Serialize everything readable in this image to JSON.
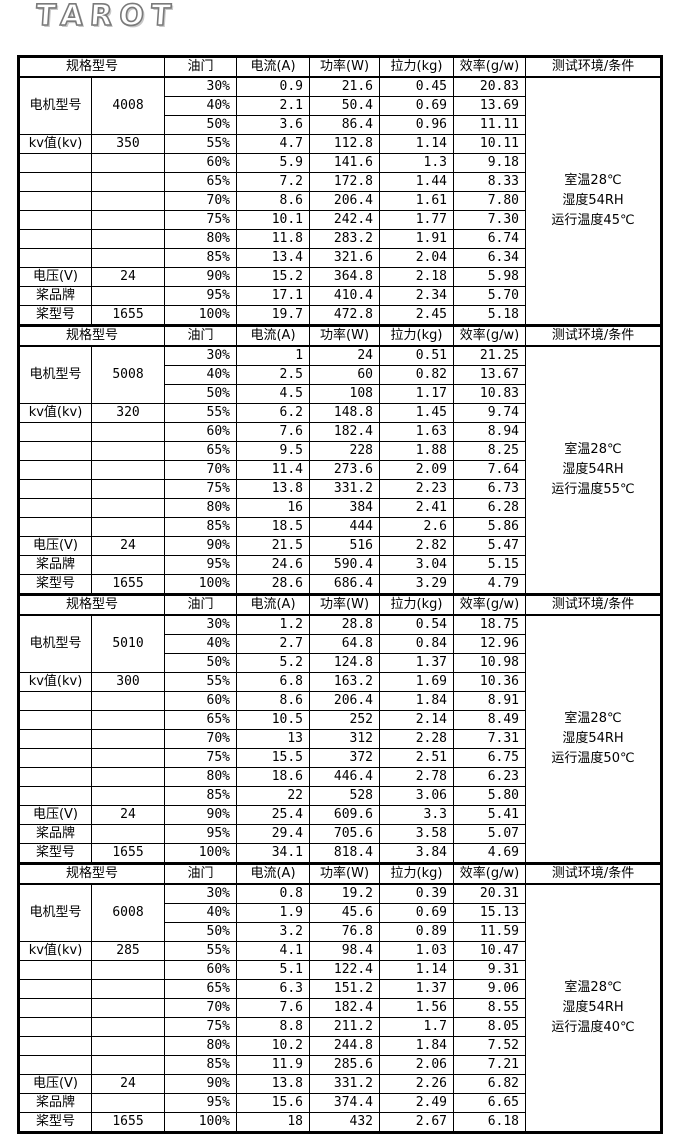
{
  "logo": "TAROT",
  "colors": {
    "border": "#000000",
    "background": "#ffffff",
    "logo_gray": "#7a7a7a"
  },
  "table": {
    "spec_header": "规格型号",
    "columns": [
      "油门",
      "电流(A)",
      "功率(W)",
      "拉力(kg)",
      "效率(g/w)",
      "测试环境/条件"
    ],
    "row_labels": {
      "motor_model": "电机型号",
      "kv": "kv值(kv)",
      "voltage": "电压(V)",
      "prop_brand": "桨品牌",
      "prop_model": "桨型号"
    },
    "sections": [
      {
        "motor_model": "4008",
        "kv": "350",
        "voltage": "24",
        "prop_brand": "",
        "prop_model": "1655",
        "environment": [
          "室温28℃",
          "湿度54RH",
          "运行温度45℃"
        ],
        "rows": [
          [
            "30%",
            "0.9",
            "21.6",
            "0.45",
            "20.83"
          ],
          [
            "40%",
            "2.1",
            "50.4",
            "0.69",
            "13.69"
          ],
          [
            "50%",
            "3.6",
            "86.4",
            "0.96",
            "11.11"
          ],
          [
            "55%",
            "4.7",
            "112.8",
            "1.14",
            "10.11"
          ],
          [
            "60%",
            "5.9",
            "141.6",
            "1.3",
            "9.18"
          ],
          [
            "65%",
            "7.2",
            "172.8",
            "1.44",
            "8.33"
          ],
          [
            "70%",
            "8.6",
            "206.4",
            "1.61",
            "7.80"
          ],
          [
            "75%",
            "10.1",
            "242.4",
            "1.77",
            "7.30"
          ],
          [
            "80%",
            "11.8",
            "283.2",
            "1.91",
            "6.74"
          ],
          [
            "85%",
            "13.4",
            "321.6",
            "2.04",
            "6.34"
          ],
          [
            "90%",
            "15.2",
            "364.8",
            "2.18",
            "5.98"
          ],
          [
            "95%",
            "17.1",
            "410.4",
            "2.34",
            "5.70"
          ],
          [
            "100%",
            "19.7",
            "472.8",
            "2.45",
            "5.18"
          ]
        ]
      },
      {
        "motor_model": "5008",
        "kv": "320",
        "voltage": "24",
        "prop_brand": "",
        "prop_model": "1655",
        "environment": [
          "室温28℃",
          "湿度54RH",
          "运行温度55℃"
        ],
        "rows": [
          [
            "30%",
            "1",
            "24",
            "0.51",
            "21.25"
          ],
          [
            "40%",
            "2.5",
            "60",
            "0.82",
            "13.67"
          ],
          [
            "50%",
            "4.5",
            "108",
            "1.17",
            "10.83"
          ],
          [
            "55%",
            "6.2",
            "148.8",
            "1.45",
            "9.74"
          ],
          [
            "60%",
            "7.6",
            "182.4",
            "1.63",
            "8.94"
          ],
          [
            "65%",
            "9.5",
            "228",
            "1.88",
            "8.25"
          ],
          [
            "70%",
            "11.4",
            "273.6",
            "2.09",
            "7.64"
          ],
          [
            "75%",
            "13.8",
            "331.2",
            "2.23",
            "6.73"
          ],
          [
            "80%",
            "16",
            "384",
            "2.41",
            "6.28"
          ],
          [
            "85%",
            "18.5",
            "444",
            "2.6",
            "5.86"
          ],
          [
            "90%",
            "21.5",
            "516",
            "2.82",
            "5.47"
          ],
          [
            "95%",
            "24.6",
            "590.4",
            "3.04",
            "5.15"
          ],
          [
            "100%",
            "28.6",
            "686.4",
            "3.29",
            "4.79"
          ]
        ]
      },
      {
        "motor_model": "5010",
        "kv": "300",
        "voltage": "24",
        "prop_brand": "",
        "prop_model": "1655",
        "environment": [
          "室温28℃",
          "湿度54RH",
          "运行温度50℃"
        ],
        "rows": [
          [
            "30%",
            "1.2",
            "28.8",
            "0.54",
            "18.75"
          ],
          [
            "40%",
            "2.7",
            "64.8",
            "0.84",
            "12.96"
          ],
          [
            "50%",
            "5.2",
            "124.8",
            "1.37",
            "10.98"
          ],
          [
            "55%",
            "6.8",
            "163.2",
            "1.69",
            "10.36"
          ],
          [
            "60%",
            "8.6",
            "206.4",
            "1.84",
            "8.91"
          ],
          [
            "65%",
            "10.5",
            "252",
            "2.14",
            "8.49"
          ],
          [
            "70%",
            "13",
            "312",
            "2.28",
            "7.31"
          ],
          [
            "75%",
            "15.5",
            "372",
            "2.51",
            "6.75"
          ],
          [
            "80%",
            "18.6",
            "446.4",
            "2.78",
            "6.23"
          ],
          [
            "85%",
            "22",
            "528",
            "3.06",
            "5.80"
          ],
          [
            "90%",
            "25.4",
            "609.6",
            "3.3",
            "5.41"
          ],
          [
            "95%",
            "29.4",
            "705.6",
            "3.58",
            "5.07"
          ],
          [
            "100%",
            "34.1",
            "818.4",
            "3.84",
            "4.69"
          ]
        ]
      },
      {
        "motor_model": "6008",
        "kv": "285",
        "voltage": "24",
        "prop_brand": "",
        "prop_model": "1655",
        "environment": [
          "室温28℃",
          "湿度54RH",
          "运行温度40℃"
        ],
        "rows": [
          [
            "30%",
            "0.8",
            "19.2",
            "0.39",
            "20.31"
          ],
          [
            "40%",
            "1.9",
            "45.6",
            "0.69",
            "15.13"
          ],
          [
            "50%",
            "3.2",
            "76.8",
            "0.89",
            "11.59"
          ],
          [
            "55%",
            "4.1",
            "98.4",
            "1.03",
            "10.47"
          ],
          [
            "60%",
            "5.1",
            "122.4",
            "1.14",
            "9.31"
          ],
          [
            "65%",
            "6.3",
            "151.2",
            "1.37",
            "9.06"
          ],
          [
            "70%",
            "7.6",
            "182.4",
            "1.56",
            "8.55"
          ],
          [
            "75%",
            "8.8",
            "211.2",
            "1.7",
            "8.05"
          ],
          [
            "80%",
            "10.2",
            "244.8",
            "1.84",
            "7.52"
          ],
          [
            "85%",
            "11.9",
            "285.6",
            "2.06",
            "7.21"
          ],
          [
            "90%",
            "13.8",
            "331.2",
            "2.26",
            "6.82"
          ],
          [
            "95%",
            "15.6",
            "374.4",
            "2.49",
            "6.65"
          ],
          [
            "100%",
            "18",
            "432",
            "2.67",
            "6.18"
          ]
        ]
      }
    ]
  }
}
